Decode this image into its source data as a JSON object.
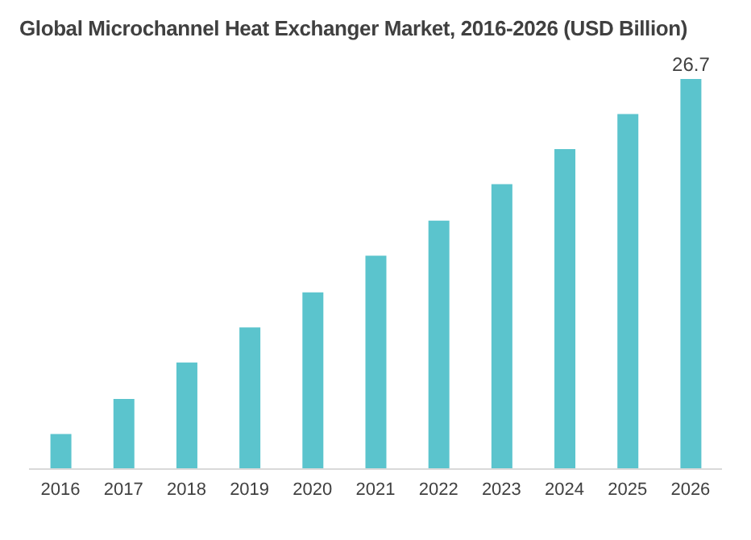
{
  "chart_data": {
    "type": "bar",
    "title": "Global Microchannel Heat Exchanger Market, 2016-2026 (USD Billion)",
    "categories": [
      "2016",
      "2017",
      "2018",
      "2019",
      "2020",
      "2021",
      "2022",
      "2023",
      "2024",
      "2025",
      "2026"
    ],
    "values": [
      2.4,
      4.8,
      7.3,
      9.7,
      12.1,
      14.6,
      17.0,
      19.5,
      21.9,
      24.3,
      26.7
    ],
    "value_labels": [
      null,
      null,
      null,
      null,
      null,
      null,
      null,
      null,
      null,
      null,
      "26.7"
    ],
    "color": "#5bc4cd",
    "grid": false
  }
}
